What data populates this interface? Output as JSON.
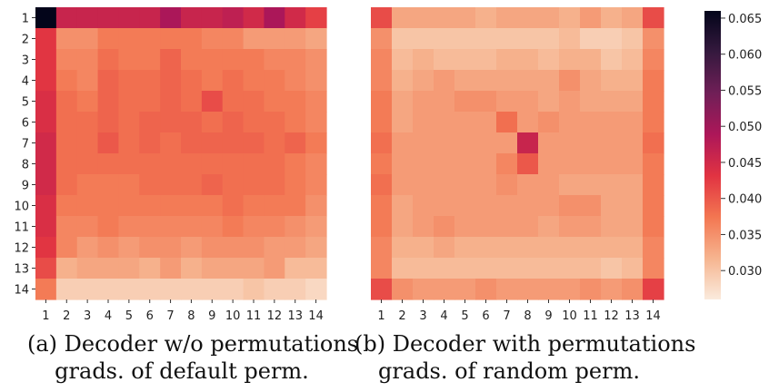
{
  "chart_data": [
    {
      "type": "heatmap",
      "caption_line1": "(a) Decoder w/o permutations",
      "caption_line2": "grads. of default perm.",
      "x_ticks": [
        "1",
        "2",
        "3",
        "4",
        "5",
        "6",
        "7",
        "8",
        "9",
        "10",
        "11",
        "12",
        "13",
        "14"
      ],
      "y_ticks": [
        "1",
        "2",
        "3",
        "4",
        "5",
        "6",
        "7",
        "8",
        "9",
        "10",
        "11",
        "12",
        "13",
        "14"
      ],
      "values": [
        [
          0.066,
          0.046,
          0.046,
          0.046,
          0.046,
          0.046,
          0.049,
          0.046,
          0.046,
          0.047,
          0.045,
          0.049,
          0.045,
          0.042
        ],
        [
          0.043,
          0.035,
          0.035,
          0.037,
          0.037,
          0.037,
          0.037,
          0.037,
          0.036,
          0.036,
          0.034,
          0.034,
          0.034,
          0.033
        ],
        [
          0.043,
          0.036,
          0.036,
          0.038,
          0.037,
          0.037,
          0.039,
          0.037,
          0.037,
          0.037,
          0.037,
          0.036,
          0.036,
          0.035
        ],
        [
          0.043,
          0.037,
          0.036,
          0.039,
          0.038,
          0.038,
          0.039,
          0.038,
          0.037,
          0.038,
          0.037,
          0.037,
          0.036,
          0.035
        ],
        [
          0.044,
          0.038,
          0.037,
          0.039,
          0.038,
          0.038,
          0.039,
          0.038,
          0.041,
          0.038,
          0.038,
          0.037,
          0.037,
          0.036
        ],
        [
          0.044,
          0.038,
          0.038,
          0.039,
          0.038,
          0.039,
          0.039,
          0.039,
          0.038,
          0.039,
          0.038,
          0.038,
          0.037,
          0.036
        ],
        [
          0.045,
          0.038,
          0.038,
          0.04,
          0.038,
          0.039,
          0.038,
          0.039,
          0.039,
          0.039,
          0.039,
          0.038,
          0.039,
          0.037
        ],
        [
          0.045,
          0.038,
          0.038,
          0.038,
          0.038,
          0.038,
          0.038,
          0.038,
          0.038,
          0.038,
          0.038,
          0.038,
          0.037,
          0.036
        ],
        [
          0.045,
          0.038,
          0.037,
          0.037,
          0.037,
          0.038,
          0.038,
          0.038,
          0.039,
          0.038,
          0.038,
          0.038,
          0.037,
          0.036
        ],
        [
          0.044,
          0.037,
          0.037,
          0.037,
          0.037,
          0.037,
          0.037,
          0.037,
          0.037,
          0.038,
          0.037,
          0.037,
          0.037,
          0.035
        ],
        [
          0.044,
          0.036,
          0.036,
          0.037,
          0.036,
          0.036,
          0.036,
          0.036,
          0.036,
          0.037,
          0.036,
          0.036,
          0.035,
          0.034
        ],
        [
          0.043,
          0.036,
          0.034,
          0.035,
          0.034,
          0.035,
          0.035,
          0.034,
          0.035,
          0.035,
          0.035,
          0.034,
          0.034,
          0.033
        ],
        [
          0.041,
          0.032,
          0.033,
          0.033,
          0.033,
          0.032,
          0.034,
          0.032,
          0.033,
          0.033,
          0.033,
          0.034,
          0.031,
          0.031
        ],
        [
          0.037,
          0.029,
          0.029,
          0.029,
          0.029,
          0.029,
          0.029,
          0.029,
          0.029,
          0.029,
          0.03,
          0.029,
          0.029,
          0.028
        ]
      ]
    },
    {
      "type": "heatmap",
      "caption_line1": "(b) Decoder with permutations",
      "caption_line2": "grads. of random perm.",
      "x_ticks": [
        "1",
        "2",
        "3",
        "4",
        "5",
        "6",
        "7",
        "8",
        "9",
        "10",
        "11",
        "12",
        "13",
        "14"
      ],
      "y_ticks": [
        "1",
        "2",
        "3",
        "4",
        "5",
        "6",
        "7",
        "8",
        "9",
        "10",
        "11",
        "12",
        "13",
        "14"
      ],
      "values": [
        [
          0.041,
          0.033,
          0.033,
          0.033,
          0.033,
          0.032,
          0.033,
          0.033,
          0.033,
          0.032,
          0.034,
          0.032,
          0.033,
          0.041
        ],
        [
          0.035,
          0.03,
          0.03,
          0.03,
          0.03,
          0.03,
          0.03,
          0.03,
          0.03,
          0.031,
          0.029,
          0.029,
          0.03,
          0.035
        ],
        [
          0.036,
          0.031,
          0.032,
          0.031,
          0.031,
          0.031,
          0.032,
          0.032,
          0.031,
          0.032,
          0.032,
          0.03,
          0.031,
          0.036
        ],
        [
          0.036,
          0.032,
          0.033,
          0.034,
          0.033,
          0.033,
          0.033,
          0.033,
          0.033,
          0.035,
          0.033,
          0.032,
          0.032,
          0.037
        ],
        [
          0.037,
          0.033,
          0.034,
          0.034,
          0.035,
          0.035,
          0.034,
          0.034,
          0.033,
          0.034,
          0.033,
          0.033,
          0.033,
          0.037
        ],
        [
          0.037,
          0.033,
          0.034,
          0.034,
          0.034,
          0.034,
          0.038,
          0.034,
          0.035,
          0.034,
          0.034,
          0.034,
          0.034,
          0.037
        ],
        [
          0.038,
          0.034,
          0.034,
          0.034,
          0.034,
          0.034,
          0.034,
          0.046,
          0.034,
          0.034,
          0.034,
          0.034,
          0.034,
          0.038
        ],
        [
          0.037,
          0.034,
          0.034,
          0.034,
          0.034,
          0.034,
          0.036,
          0.04,
          0.034,
          0.034,
          0.034,
          0.034,
          0.034,
          0.037
        ],
        [
          0.038,
          0.034,
          0.034,
          0.034,
          0.034,
          0.034,
          0.035,
          0.034,
          0.034,
          0.033,
          0.033,
          0.033,
          0.033,
          0.037
        ],
        [
          0.037,
          0.033,
          0.034,
          0.034,
          0.034,
          0.034,
          0.034,
          0.034,
          0.034,
          0.035,
          0.035,
          0.033,
          0.033,
          0.037
        ],
        [
          0.037,
          0.033,
          0.034,
          0.035,
          0.034,
          0.034,
          0.034,
          0.034,
          0.033,
          0.034,
          0.034,
          0.033,
          0.033,
          0.037
        ],
        [
          0.036,
          0.032,
          0.032,
          0.033,
          0.032,
          0.032,
          0.032,
          0.032,
          0.032,
          0.032,
          0.032,
          0.032,
          0.032,
          0.036
        ],
        [
          0.036,
          0.031,
          0.031,
          0.031,
          0.031,
          0.031,
          0.031,
          0.031,
          0.031,
          0.031,
          0.031,
          0.03,
          0.031,
          0.036
        ],
        [
          0.041,
          0.035,
          0.034,
          0.034,
          0.034,
          0.035,
          0.034,
          0.034,
          0.034,
          0.034,
          0.035,
          0.034,
          0.035,
          0.042
        ]
      ]
    }
  ],
  "colorbar": {
    "range": [
      0.026,
      0.066
    ],
    "ticks": [
      "0.030",
      "0.035",
      "0.040",
      "0.045",
      "0.050",
      "0.055",
      "0.060",
      "0.065"
    ],
    "colormap": "rocket_r",
    "stops": [
      "#FAEBDD",
      "#F6B48F",
      "#F37651",
      "#E13342",
      "#AD1759",
      "#701F57",
      "#35193E",
      "#03051A"
    ]
  }
}
